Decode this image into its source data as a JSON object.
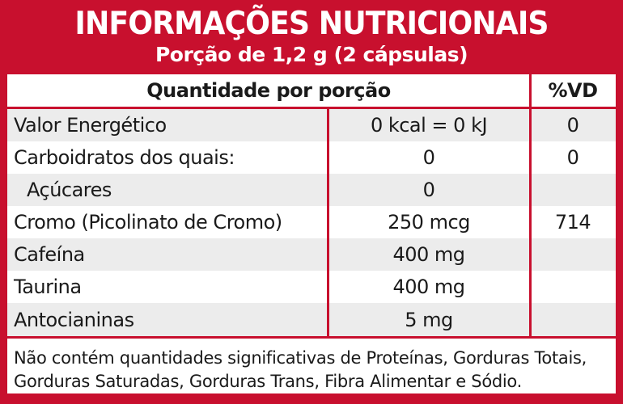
{
  "colors": {
    "brand_red": "#c8102e",
    "row_shade": "#ececec",
    "text": "#1a1a1a"
  },
  "header": {
    "title": "INFORMAÇÕES NUTRICIONAIS",
    "subtitle": "Porção de 1,2 g (2 cápsulas)"
  },
  "table": {
    "head": {
      "quantity_label": "Quantidade por porção",
      "vd_label": "%VD"
    },
    "rows": [
      {
        "name": "Valor Energético",
        "qty": "0 kcal = 0 kJ",
        "vd": "0"
      },
      {
        "name": "Carboidratos dos quais:",
        "qty": "0",
        "vd": "0"
      },
      {
        "name": "Açúcares",
        "qty": "0",
        "vd": ""
      },
      {
        "name": "Cromo (Picolinato de Cromo)",
        "qty": "250 mcg",
        "vd": "714"
      },
      {
        "name": "Cafeína",
        "qty": "400 mg",
        "vd": ""
      },
      {
        "name": "Taurina",
        "qty": "400 mg",
        "vd": ""
      },
      {
        "name": "Antocianinas",
        "qty": "5 mg",
        "vd": ""
      }
    ],
    "footnote": "Não contém quantidades significativas de Proteínas, Gorduras Totais, Gorduras Saturadas, Gorduras Trans, Fibra Alimentar e Sódio."
  }
}
